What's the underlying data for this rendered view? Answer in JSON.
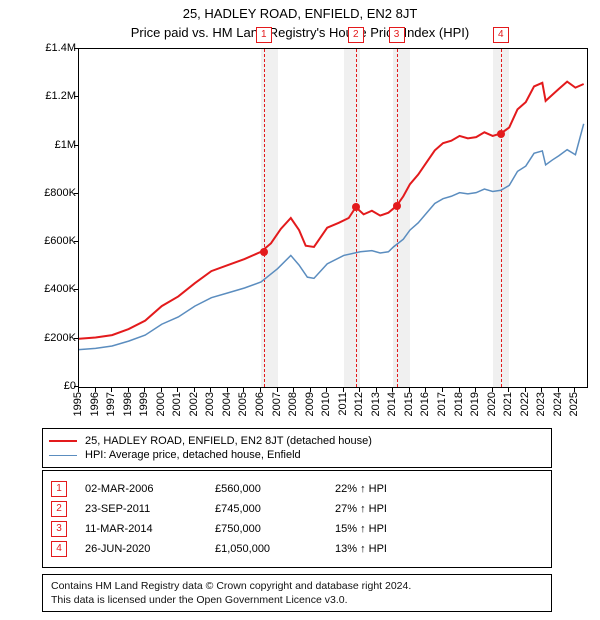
{
  "title": "25, HADLEY ROAD, ENFIELD, EN2 8JT",
  "subtitle": "Price paid vs. HM Land Registry's House Price Index (HPI)",
  "chart": {
    "type": "line",
    "background_color": "#ffffff",
    "shaded_band_color": "#f0f0f0",
    "axis_color": "#000000",
    "x": {
      "min": 1995,
      "max": 2025.7,
      "ticks": [
        1995,
        1996,
        1997,
        1998,
        1999,
        2000,
        2001,
        2002,
        2003,
        2004,
        2005,
        2006,
        2007,
        2008,
        2009,
        2010,
        2011,
        2012,
        2013,
        2014,
        2015,
        2016,
        2017,
        2018,
        2019,
        2020,
        2021,
        2022,
        2023,
        2024,
        2025
      ],
      "label_fontsize": 11
    },
    "y": {
      "min": 0,
      "max": 1400000,
      "ticks": [
        0,
        200000,
        400000,
        600000,
        800000,
        1000000,
        1200000,
        1400000
      ],
      "tick_labels": [
        "£0",
        "£200K",
        "£400K",
        "£600K",
        "£800K",
        "£1M",
        "£1.2M",
        "£1.4M"
      ],
      "label_fontsize": 11
    },
    "shaded_bands_years": [
      [
        2006,
        2007
      ],
      [
        2011,
        2012
      ],
      [
        2014,
        2015
      ],
      [
        2020,
        2021
      ]
    ],
    "series": [
      {
        "name": "price_paid",
        "label": "25, HADLEY ROAD, ENFIELD, EN2 8JT (detached house)",
        "color": "#e31a1c",
        "line_width": 2,
        "points": [
          [
            1995,
            200000
          ],
          [
            1996,
            205000
          ],
          [
            1997,
            215000
          ],
          [
            1998,
            240000
          ],
          [
            1999,
            275000
          ],
          [
            2000,
            335000
          ],
          [
            2001,
            375000
          ],
          [
            2002,
            430000
          ],
          [
            2003,
            480000
          ],
          [
            2004,
            505000
          ],
          [
            2005,
            530000
          ],
          [
            2006,
            560000
          ],
          [
            2006.6,
            595000
          ],
          [
            2007.2,
            655000
          ],
          [
            2007.8,
            700000
          ],
          [
            2008.3,
            650000
          ],
          [
            2008.7,
            585000
          ],
          [
            2009.2,
            580000
          ],
          [
            2010,
            660000
          ],
          [
            2010.7,
            680000
          ],
          [
            2011.3,
            700000
          ],
          [
            2011.73,
            745000
          ],
          [
            2012.2,
            715000
          ],
          [
            2012.7,
            730000
          ],
          [
            2013.2,
            710000
          ],
          [
            2013.7,
            722000
          ],
          [
            2014.19,
            750000
          ],
          [
            2014.6,
            790000
          ],
          [
            2015,
            840000
          ],
          [
            2015.5,
            880000
          ],
          [
            2016,
            930000
          ],
          [
            2016.5,
            980000
          ],
          [
            2017,
            1010000
          ],
          [
            2017.5,
            1020000
          ],
          [
            2018,
            1040000
          ],
          [
            2018.5,
            1030000
          ],
          [
            2019,
            1035000
          ],
          [
            2019.5,
            1055000
          ],
          [
            2020,
            1040000
          ],
          [
            2020.49,
            1050000
          ],
          [
            2020.8,
            1065000
          ],
          [
            2021,
            1075000
          ],
          [
            2021.5,
            1150000
          ],
          [
            2022,
            1180000
          ],
          [
            2022.5,
            1245000
          ],
          [
            2023,
            1260000
          ],
          [
            2023.2,
            1185000
          ],
          [
            2023.6,
            1210000
          ],
          [
            2024,
            1235000
          ],
          [
            2024.5,
            1265000
          ],
          [
            2025,
            1240000
          ],
          [
            2025.5,
            1255000
          ]
        ]
      },
      {
        "name": "hpi",
        "label": "HPI: Average price, detached house, Enfield",
        "color": "#5b8dbf",
        "line_width": 1.5,
        "points": [
          [
            1995,
            155000
          ],
          [
            1996,
            160000
          ],
          [
            1997,
            170000
          ],
          [
            1998,
            190000
          ],
          [
            1999,
            215000
          ],
          [
            2000,
            260000
          ],
          [
            2001,
            290000
          ],
          [
            2002,
            335000
          ],
          [
            2003,
            370000
          ],
          [
            2004,
            390000
          ],
          [
            2005,
            410000
          ],
          [
            2006,
            435000
          ],
          [
            2007,
            490000
          ],
          [
            2007.8,
            545000
          ],
          [
            2008.3,
            505000
          ],
          [
            2008.8,
            455000
          ],
          [
            2009.2,
            450000
          ],
          [
            2010,
            510000
          ],
          [
            2011,
            545000
          ],
          [
            2012,
            560000
          ],
          [
            2012.7,
            565000
          ],
          [
            2013.2,
            555000
          ],
          [
            2013.7,
            560000
          ],
          [
            2014,
            580000
          ],
          [
            2014.6,
            612000
          ],
          [
            2015,
            650000
          ],
          [
            2015.5,
            680000
          ],
          [
            2016,
            720000
          ],
          [
            2016.5,
            760000
          ],
          [
            2017,
            780000
          ],
          [
            2017.5,
            790000
          ],
          [
            2018,
            805000
          ],
          [
            2018.5,
            800000
          ],
          [
            2019,
            805000
          ],
          [
            2019.5,
            820000
          ],
          [
            2020,
            810000
          ],
          [
            2020.5,
            815000
          ],
          [
            2021,
            835000
          ],
          [
            2021.5,
            893000
          ],
          [
            2022,
            915000
          ],
          [
            2022.5,
            968000
          ],
          [
            2023,
            978000
          ],
          [
            2023.2,
            920000
          ],
          [
            2023.6,
            940000
          ],
          [
            2024,
            958000
          ],
          [
            2024.5,
            983000
          ],
          [
            2025,
            962000
          ],
          [
            2025.5,
            1090000
          ]
        ]
      }
    ],
    "scatter_points": {
      "color": "#e31a1c",
      "radius": 4,
      "points": [
        [
          2006.17,
          560000
        ],
        [
          2011.73,
          745000
        ],
        [
          2014.19,
          750000
        ],
        [
          2020.49,
          1050000
        ]
      ]
    },
    "marker_boxes": {
      "border_color": "#e31a1c",
      "text_color": "#e31a1c",
      "labels": [
        "1",
        "2",
        "3",
        "4"
      ],
      "years": [
        2006.17,
        2011.73,
        2014.19,
        2020.49
      ]
    }
  },
  "legend": {
    "rows": [
      {
        "color": "#e31a1c",
        "width": 2,
        "label": "25, HADLEY ROAD, ENFIELD, EN2 8JT (detached house)"
      },
      {
        "color": "#5b8dbf",
        "width": 1.5,
        "label": "HPI: Average price, detached house, Enfield"
      }
    ]
  },
  "transactions": [
    {
      "n": "1",
      "date": "02-MAR-2006",
      "price": "£560,000",
      "pct": "22% ↑ HPI"
    },
    {
      "n": "2",
      "date": "23-SEP-2011",
      "price": "£745,000",
      "pct": "27% ↑ HPI"
    },
    {
      "n": "3",
      "date": "11-MAR-2014",
      "price": "£750,000",
      "pct": "15% ↑ HPI"
    },
    {
      "n": "4",
      "date": "26-JUN-2020",
      "price": "£1,050,000",
      "pct": "13% ↑ HPI"
    }
  ],
  "footer_line1": "Contains HM Land Registry data © Crown copyright and database right 2024.",
  "footer_line2": "This data is licensed under the Open Government Licence v3.0."
}
